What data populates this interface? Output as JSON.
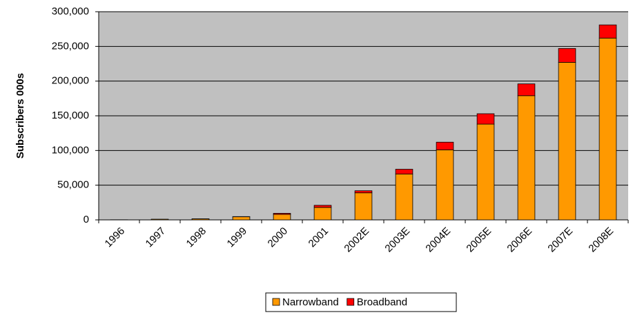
{
  "chart_data": {
    "type": "stacked_bar",
    "y_label": "Subscribers 000s",
    "categories": [
      "1996",
      "1997",
      "1998",
      "1999",
      "2000",
      "2001",
      "2002E",
      "2003E",
      "2004E",
      "2005E",
      "2006E",
      "2007E",
      "2008E"
    ],
    "series": [
      {
        "name": "Narrowband",
        "color": "#ff9900",
        "values": [
          200,
          1000,
          1500,
          4500,
          8000,
          18000,
          39000,
          66000,
          101000,
          138000,
          179000,
          227000,
          262000
        ]
      },
      {
        "name": "Broadband",
        "color": "#ff0000",
        "values": [
          0,
          0,
          100,
          200,
          1500,
          3000,
          3000,
          7000,
          11000,
          15000,
          17000,
          20000,
          19000
        ]
      }
    ],
    "ylim": [
      0,
      300000
    ],
    "yticks": [
      0,
      {
        "value": 50000,
        "label": "50,000"
      },
      {
        "value": 100000,
        "label": "100,000"
      },
      {
        "value": 150000,
        "label": "150,000"
      },
      {
        "value": 200000,
        "label": "200,000"
      },
      {
        "value": 250000,
        "label": "250,000"
      },
      {
        "value": 300000,
        "label": "300,000"
      }
    ],
    "grid": true,
    "legend": "bottom"
  }
}
